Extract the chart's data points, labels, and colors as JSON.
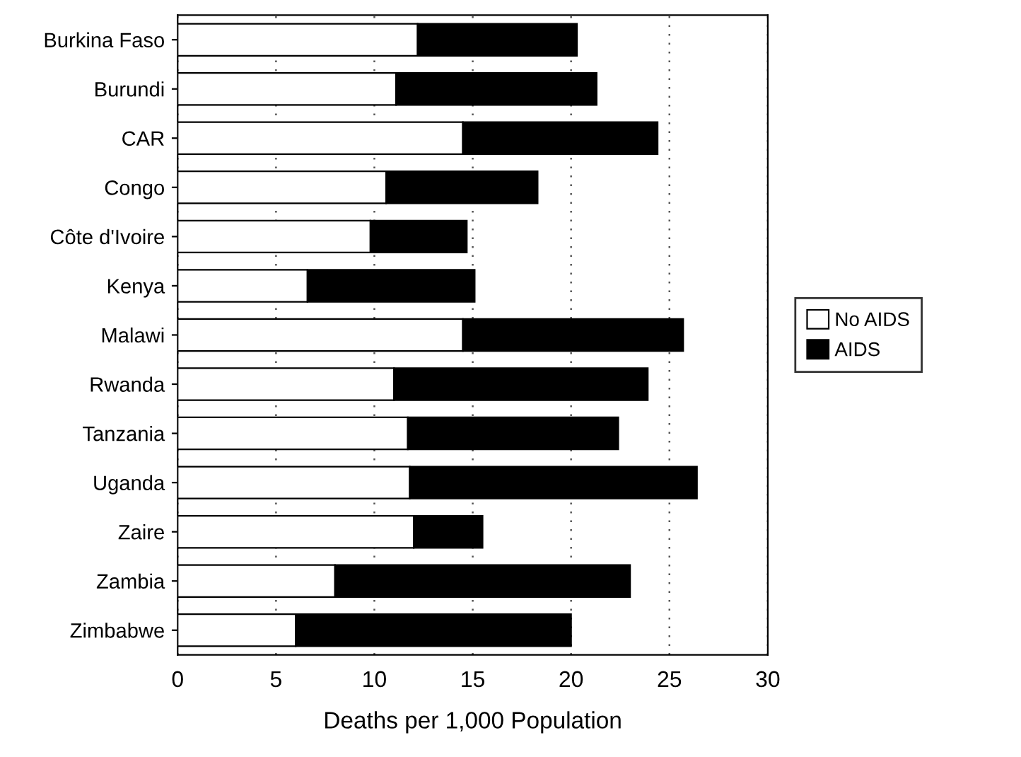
{
  "chart_data": {
    "type": "bar",
    "orientation": "horizontal",
    "stacked": true,
    "categories": [
      "Burkina Faso",
      "Burundi",
      "CAR",
      "Congo",
      "Côte d'Ivoire",
      "Kenya",
      "Malawi",
      "Rwanda",
      "Tanzania",
      "Uganda",
      "Zaire",
      "Zambia",
      "Zimbabwe"
    ],
    "series": [
      {
        "name": "No AIDS",
        "color": "#ffffff",
        "values": [
          12.2,
          11.1,
          14.5,
          10.6,
          9.8,
          6.6,
          14.5,
          11.0,
          11.7,
          11.8,
          12.0,
          8.0,
          6.0
        ]
      },
      {
        "name": "AIDS",
        "color": "#000000",
        "values": [
          8.1,
          10.2,
          9.9,
          7.7,
          4.9,
          8.5,
          11.2,
          12.9,
          10.7,
          14.6,
          3.5,
          15.0,
          14.0
        ]
      }
    ],
    "xlabel": "Deaths per 1,000 Population",
    "xlim": [
      0,
      30
    ],
    "xticks": [
      0,
      5,
      10,
      15,
      20,
      25,
      30
    ],
    "grid": "x",
    "legend": "right"
  }
}
